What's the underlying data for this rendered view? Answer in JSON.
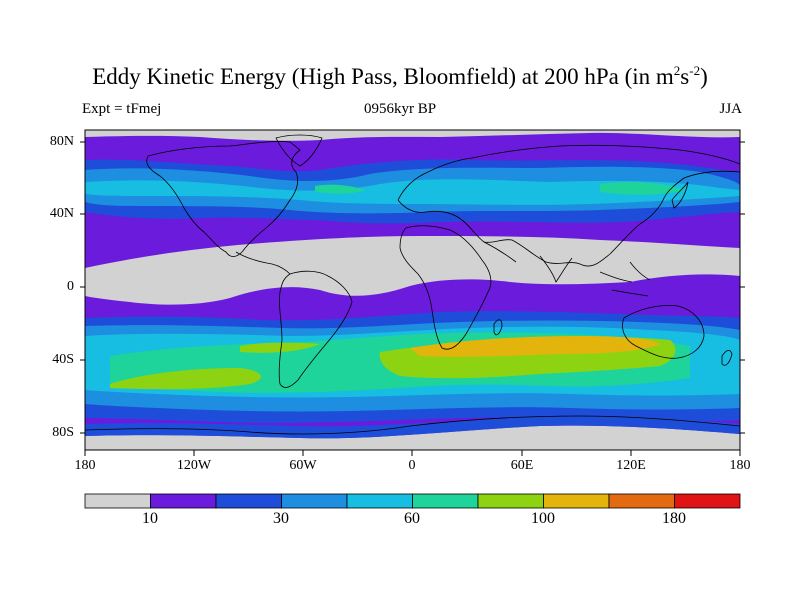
{
  "title": {
    "main": "Eddy Kinetic Energy (High Pass, Bloomfield) at 200 hPa (in m",
    "sup1": "2",
    "mid": "s",
    "sup2": "-2",
    "close": ")"
  },
  "subtitle": "0956kyr BP",
  "experiment": "Expt = tFmej",
  "season": "JJA",
  "lat_labels": [
    "80N",
    "40N",
    "0",
    "40S",
    "80S"
  ],
  "lon_labels": [
    "180",
    "120W",
    "60W",
    "0",
    "60E",
    "120E",
    "180"
  ],
  "colorbar": {
    "labels": [
      "10",
      "30",
      "60",
      "100",
      "180"
    ],
    "colors": [
      "#d2d2d2",
      "#6b1bdc",
      "#1e4ed9",
      "#1e8ee0",
      "#18bde2",
      "#1ed49a",
      "#8ed312",
      "#e2b40c",
      "#e46a12",
      "#e01414"
    ]
  }
}
